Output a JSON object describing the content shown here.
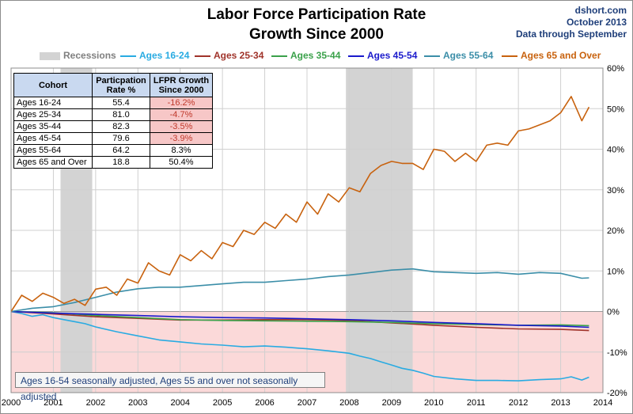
{
  "title_line1": "Labor Force Participation Rate",
  "title_line2": "Growth Since 2000",
  "source": {
    "site": "dshort.com",
    "date": "October 2013",
    "through": "Data through September"
  },
  "footnote": "Ages 16-54 seasonally adjusted, Ages 55 and over not seasonally adjusted",
  "table": {
    "headers": [
      "Cohort",
      "Particpation Rate %",
      "LFPR Growth Since 2000"
    ],
    "rows": [
      {
        "cohort": "Ages 16-24",
        "rate": "55.4",
        "growth": "-16.2%"
      },
      {
        "cohort": "Ages 25-34",
        "rate": "81.0",
        "growth": "-4.7%"
      },
      {
        "cohort": "Ages 35-44",
        "rate": "82.3",
        "growth": "-3.5%"
      },
      {
        "cohort": "Ages 45-54",
        "rate": "79.6",
        "growth": "-3.9%"
      },
      {
        "cohort": "Ages 55-64",
        "rate": "64.2",
        "growth": "8.3%"
      },
      {
        "cohort": "Ages 65 and Over",
        "rate": "18.8",
        "growth": "50.4%"
      }
    ]
  },
  "colors": {
    "recession": "#d3d3d3",
    "negative_zone": "#fbd9d9",
    "grid": "#d0d0d0",
    "ages_16_24": "#29abe2",
    "ages_25_34": "#a0332a",
    "ages_35_44": "#3aa14a",
    "ages_45_54": "#1a1acc",
    "ages_55_64": "#3b8ea8",
    "ages_65_over": "#c8620e"
  },
  "chart_data": {
    "type": "line",
    "title": "Labor Force Participation Rate Growth Since 2000",
    "x_ticks": [
      "2000",
      "2001",
      "2002",
      "2003",
      "2004",
      "2005",
      "2006",
      "2007",
      "2008",
      "2009",
      "2010",
      "2011",
      "2012",
      "2013",
      "2014"
    ],
    "y_ticks": [
      "-20%",
      "-10%",
      "0%",
      "10%",
      "20%",
      "30%",
      "40%",
      "50%",
      "60%"
    ],
    "ylim": [
      -20,
      60
    ],
    "xlim": [
      2000,
      2014
    ],
    "recessions": [
      {
        "name": "Recessions",
        "start": 2001.17,
        "end": 2001.92
      },
      {
        "start": 2007.92,
        "end": 2009.5
      }
    ],
    "grid": true,
    "legend_position": "top",
    "series": [
      {
        "name": "Ages 16-24",
        "color_key": "ages_16_24",
        "x": [
          2000,
          2000.25,
          2000.5,
          2000.75,
          2001,
          2001.25,
          2001.5,
          2001.75,
          2002,
          2002.5,
          2003,
          2003.5,
          2004,
          2004.5,
          2005,
          2005.5,
          2006,
          2006.5,
          2007,
          2007.5,
          2008,
          2008.25,
          2008.5,
          2008.75,
          2009,
          2009.25,
          2009.5,
          2009.75,
          2010,
          2010.5,
          2011,
          2011.5,
          2012,
          2012.5,
          2013,
          2013.25,
          2013.5,
          2013.67
        ],
        "y": [
          0,
          -0.5,
          -1.2,
          -0.8,
          -1.5,
          -2,
          -2.5,
          -3,
          -3.8,
          -5,
          -6,
          -7,
          -7.5,
          -8,
          -8.3,
          -8.7,
          -8.5,
          -8.8,
          -9.2,
          -9.7,
          -10.3,
          -11,
          -11.6,
          -12.4,
          -13.2,
          -14,
          -14.5,
          -15.2,
          -16,
          -16.6,
          -17,
          -17,
          -17.1,
          -16.8,
          -16.6,
          -16.1,
          -16.9,
          -16.2
        ]
      },
      {
        "name": "Ages 25-34",
        "color_key": "ages_25_34",
        "x": [
          2000,
          2001,
          2002,
          2003,
          2004,
          2005,
          2006,
          2007,
          2008,
          2009,
          2010,
          2011,
          2012,
          2013,
          2013.67
        ],
        "y": [
          0,
          -0.6,
          -1.3,
          -1.7,
          -2.1,
          -2.1,
          -2,
          -2,
          -2.2,
          -2.8,
          -3.4,
          -3.9,
          -4.3,
          -4.4,
          -4.7
        ]
      },
      {
        "name": "Ages 35-44",
        "color_key": "ages_35_44",
        "x": [
          2000,
          2001,
          2002,
          2003,
          2004,
          2005,
          2006,
          2007,
          2008,
          2009,
          2010,
          2011,
          2012,
          2013,
          2013.67
        ],
        "y": [
          0,
          -0.3,
          -1,
          -1.5,
          -2,
          -2.2,
          -2.3,
          -2.4,
          -2.5,
          -2.7,
          -3,
          -3.2,
          -3.4,
          -3.3,
          -3.5
        ]
      },
      {
        "name": "Ages 45-54",
        "color_key": "ages_45_54",
        "x": [
          2000,
          2001,
          2002,
          2003,
          2004,
          2005,
          2006,
          2007,
          2008,
          2009,
          2010,
          2011,
          2012,
          2013,
          2013.67
        ],
        "y": [
          0,
          -0.4,
          -0.7,
          -1,
          -1.3,
          -1.5,
          -1.6,
          -1.8,
          -2,
          -2.3,
          -2.7,
          -3,
          -3.4,
          -3.6,
          -3.9
        ]
      },
      {
        "name": "Ages 55-64",
        "color_key": "ages_55_64",
        "x": [
          2000,
          2000.5,
          2001,
          2001.5,
          2002,
          2002.5,
          2003,
          2003.5,
          2004,
          2004.5,
          2005,
          2005.5,
          2006,
          2006.5,
          2007,
          2007.5,
          2008,
          2008.5,
          2009,
          2009.5,
          2010,
          2010.5,
          2011,
          2011.5,
          2012,
          2012.5,
          2013,
          2013.5,
          2013.67
        ],
        "y": [
          0,
          0.8,
          1.2,
          2.2,
          3.5,
          4.8,
          5.6,
          6,
          6,
          6.4,
          6.8,
          7.2,
          7.2,
          7.6,
          8,
          8.6,
          9,
          9.6,
          10.2,
          10.5,
          9.8,
          9.6,
          9.4,
          9.6,
          9.2,
          9.6,
          9.4,
          8.2,
          8.3
        ]
      },
      {
        "name": "Ages 65 and Over",
        "color_key": "ages_65_over",
        "x": [
          2000,
          2000.25,
          2000.5,
          2000.75,
          2001,
          2001.25,
          2001.5,
          2001.75,
          2002,
          2002.25,
          2002.5,
          2002.75,
          2003,
          2003.25,
          2003.5,
          2003.75,
          2004,
          2004.25,
          2004.5,
          2004.75,
          2005,
          2005.25,
          2005.5,
          2005.75,
          2006,
          2006.25,
          2006.5,
          2006.75,
          2007,
          2007.25,
          2007.5,
          2007.75,
          2008,
          2008.25,
          2008.5,
          2008.75,
          2009,
          2009.25,
          2009.5,
          2009.75,
          2010,
          2010.25,
          2010.5,
          2010.75,
          2011,
          2011.25,
          2011.5,
          2011.75,
          2012,
          2012.25,
          2012.5,
          2012.75,
          2013,
          2013.25,
          2013.5,
          2013.67
        ],
        "y": [
          0,
          4,
          2.5,
          4.5,
          3.5,
          2,
          3,
          1.5,
          5.5,
          6,
          4,
          8,
          7,
          12,
          10,
          9,
          14,
          12.5,
          15,
          13,
          17,
          16,
          20,
          19,
          22,
          20.5,
          24,
          22,
          27,
          24,
          29,
          27,
          30.5,
          29.5,
          34,
          36,
          37,
          36.5,
          36.5,
          35,
          40,
          39.5,
          37,
          39,
          37,
          41,
          41.5,
          41,
          44.5,
          45,
          46,
          47,
          49,
          53,
          47,
          50.4
        ]
      }
    ]
  }
}
